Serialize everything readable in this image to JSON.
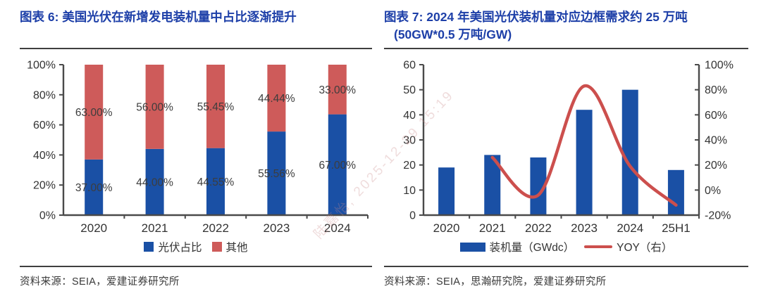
{
  "panels": {
    "left": {
      "title": "图表 6: 美国光伏在新增发电装机量中占比逐渐提升",
      "source": "资料来源：SEIA，爱建证券研究所",
      "legend": [
        {
          "label": "光伏占比",
          "color": "#1A50A5"
        },
        {
          "label": "其他",
          "color": "#CE5B5A"
        }
      ]
    },
    "right": {
      "title_line1": "图表 7: 2024 年美国光伏装机量对应边框需求约 25 万吨",
      "title_line2": "(50GW*0.5 万吨/GW)",
      "source": "资料来源：SEIA，思瀚研究院，爱建证券研究所",
      "legend": [
        {
          "label": "装机量（GWdc）",
          "color": "#1A50A5",
          "swatch": "bar"
        },
        {
          "label": "YOY（右）",
          "color": "#CC4F4D",
          "swatch": "line"
        }
      ]
    }
  },
  "watermark": "陆嘉怡, 2025-12-29 15:19",
  "colors": {
    "title_blue": "#1D3FA8",
    "bar_blue": "#1A50A5",
    "bar_red": "#CE5B5A",
    "line_red": "#CC4F4D",
    "axis": "#4a4a4a",
    "tick_text": "#333333",
    "value_label": "#3d3d3d"
  },
  "chart_data": [
    {
      "type": "bar",
      "stacked": true,
      "title": "美国光伏在新增发电装机量中占比逐渐提升",
      "categories": [
        "2020",
        "2021",
        "2022",
        "2023",
        "2024"
      ],
      "series": [
        {
          "name": "光伏占比",
          "color": "#1A50A5",
          "values": [
            37.0,
            44.0,
            44.55,
            55.56,
            67.0
          ],
          "labels": [
            "37.00%",
            "44.00%",
            "44.55%",
            "55.56%",
            "67.00%"
          ]
        },
        {
          "name": "其他",
          "color": "#CE5B5A",
          "values": [
            63.0,
            56.0,
            55.45,
            44.44,
            33.0
          ],
          "labels": [
            "63.00%",
            "56.00%",
            "55.45%",
            "44.44%",
            "33.00%"
          ]
        }
      ],
      "xlabel": "",
      "ylabel": "",
      "ylim": [
        0,
        100
      ],
      "y_ticks": [
        0,
        20,
        40,
        60,
        80,
        100
      ],
      "y_tick_suffix": "%",
      "grid": false,
      "legend_position": "bottom"
    },
    {
      "type": "bar+line",
      "title": "2024 年美国光伏装机量对应边框需求约 25 万吨（50GW*0.5 万吨/GW）",
      "categories": [
        "2020",
        "2021",
        "2022",
        "2023",
        "2024",
        "25H1"
      ],
      "series": [
        {
          "name": "装机量（GWdc）",
          "type": "bar",
          "axis": "left",
          "color": "#1A50A5",
          "values": [
            19,
            24,
            23,
            42,
            50,
            18
          ]
        },
        {
          "name": "YOY（右）",
          "type": "line",
          "axis": "right",
          "color": "#CC4F4D",
          "unit": "%",
          "values": [
            null,
            26,
            -4,
            83,
            19,
            -12
          ]
        }
      ],
      "left_axis": {
        "range": [
          0,
          60
        ],
        "ticks": [
          0,
          10,
          20,
          30,
          40,
          50,
          60
        ]
      },
      "right_axis": {
        "range": [
          -20,
          100
        ],
        "ticks": [
          -20,
          0,
          20,
          40,
          60,
          80,
          100
        ],
        "suffix": "%"
      },
      "grid": false,
      "legend_position": "bottom"
    }
  ]
}
